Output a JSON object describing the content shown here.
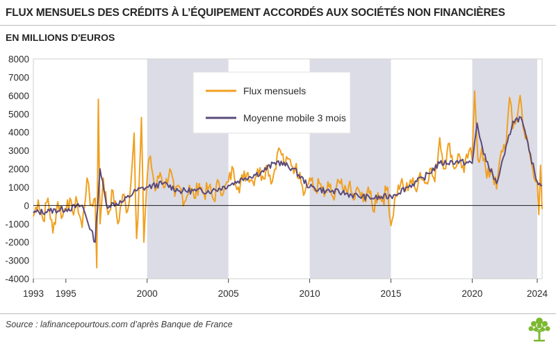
{
  "header": {
    "title": "FLUX MENSUELS DES CRÉDITS À L’ÉQUIPEMENT ACCORDÉS AUX SOCIÉTÉS NON FINANCIÈRES",
    "subtitle": "EN MILLIONS D'EUROS"
  },
  "footer": {
    "source": "Source : lafinancepourtous.com d’après Banque de France"
  },
  "colors": {
    "flux": "#f0a020",
    "moyenne": "#5a4a7a",
    "shade": "#dcdce6",
    "zero_line": "#1a1a1a",
    "logo": "#7db832"
  },
  "chart_data": {
    "type": "line",
    "title": "FLUX MENSUELS DES CRÉDITS À L’ÉQUIPEMENT ACCORDÉS AUX SOCIÉTÉS NON FINANCIÈRES",
    "ylabel": "EN MILLIONS D'EUROS",
    "ylim": [
      -4000,
      8000
    ],
    "xlim": [
      1993,
      2024.3
    ],
    "y_ticks": [
      8000,
      7000,
      6000,
      5000,
      4000,
      3000,
      2000,
      1000,
      0,
      -1000,
      -2000,
      -3000,
      -4000
    ],
    "x_ticks": [
      1993,
      1995,
      2000,
      2005,
      2010,
      2015,
      2020,
      2024
    ],
    "shaded_periods": [
      [
        2000,
        2005
      ],
      [
        2010,
        2015
      ],
      [
        2020,
        2024
      ]
    ],
    "legend": {
      "placement": "top-center"
    },
    "series": [
      {
        "name": "Flux mensuels",
        "anchors": [
          [
            1993.0,
            -600
          ],
          [
            1993.3,
            300
          ],
          [
            1993.6,
            -800
          ],
          [
            1993.9,
            400
          ],
          [
            1994.2,
            -1500
          ],
          [
            1994.5,
            200
          ],
          [
            1994.8,
            -600
          ],
          [
            1995.1,
            300
          ],
          [
            1995.4,
            -300
          ],
          [
            1995.7,
            200
          ],
          [
            1996.0,
            -1200
          ],
          [
            1996.3,
            1500
          ],
          [
            1996.5,
            0
          ],
          [
            1996.8,
            400
          ],
          [
            1996.9,
            -3400
          ],
          [
            1997.0,
            5800
          ],
          [
            1997.1,
            -1000
          ],
          [
            1997.3,
            1500
          ],
          [
            1997.6,
            -500
          ],
          [
            1997.9,
            800
          ],
          [
            1998.2,
            -1000
          ],
          [
            1998.5,
            600
          ],
          [
            1998.8,
            -300
          ],
          [
            1999.0,
            1200
          ],
          [
            1999.2,
            3950
          ],
          [
            1999.35,
            -1800
          ],
          [
            1999.5,
            1000
          ],
          [
            1999.65,
            4800
          ],
          [
            1999.8,
            -2000
          ],
          [
            2000.0,
            1500
          ],
          [
            2000.2,
            2700
          ],
          [
            2000.5,
            800
          ],
          [
            2000.8,
            1800
          ],
          [
            2001.1,
            1000
          ],
          [
            2001.4,
            2000
          ],
          [
            2001.7,
            500
          ],
          [
            2002.0,
            1000
          ],
          [
            2002.3,
            200
          ],
          [
            2002.6,
            1100
          ],
          [
            2002.9,
            400
          ],
          [
            2003.2,
            1200
          ],
          [
            2003.5,
            600
          ],
          [
            2003.8,
            1000
          ],
          [
            2004.1,
            300
          ],
          [
            2004.4,
            1300
          ],
          [
            2004.7,
            700
          ],
          [
            2005.0,
            1300
          ],
          [
            2005.3,
            2000
          ],
          [
            2005.6,
            1000
          ],
          [
            2005.9,
            1500
          ],
          [
            2006.2,
            1800
          ],
          [
            2006.5,
            1300
          ],
          [
            2006.8,
            2000
          ],
          [
            2007.1,
            1600
          ],
          [
            2007.4,
            2200
          ],
          [
            2007.7,
            1300
          ],
          [
            2008.0,
            2800
          ],
          [
            2008.2,
            3000
          ],
          [
            2008.5,
            2200
          ],
          [
            2008.8,
            2500
          ],
          [
            2009.1,
            2000
          ],
          [
            2009.4,
            1800
          ],
          [
            2009.7,
            700
          ],
          [
            2010.0,
            1500
          ],
          [
            2010.3,
            800
          ],
          [
            2010.6,
            1200
          ],
          [
            2010.9,
            500
          ],
          [
            2011.2,
            1000
          ],
          [
            2011.5,
            300
          ],
          [
            2011.8,
            1300
          ],
          [
            2012.1,
            700
          ],
          [
            2012.4,
            1100
          ],
          [
            2012.7,
            300
          ],
          [
            2013.0,
            900
          ],
          [
            2013.3,
            200
          ],
          [
            2013.6,
            1000
          ],
          [
            2013.9,
            -300
          ],
          [
            2014.2,
            700
          ],
          [
            2014.5,
            300
          ],
          [
            2014.8,
            1000
          ],
          [
            2015.0,
            -1100
          ],
          [
            2015.3,
            600
          ],
          [
            2015.6,
            1200
          ],
          [
            2015.9,
            800
          ],
          [
            2016.2,
            1400
          ],
          [
            2016.5,
            900
          ],
          [
            2016.8,
            1800
          ],
          [
            2017.1,
            1200
          ],
          [
            2017.4,
            2000
          ],
          [
            2017.7,
            1300
          ],
          [
            2018.0,
            3700
          ],
          [
            2018.3,
            2000
          ],
          [
            2018.6,
            3400
          ],
          [
            2018.9,
            2000
          ],
          [
            2019.2,
            2800
          ],
          [
            2019.5,
            1800
          ],
          [
            2019.8,
            3000
          ],
          [
            2020.0,
            2500
          ],
          [
            2020.15,
            6250
          ],
          [
            2020.35,
            2500
          ],
          [
            2020.6,
            3200
          ],
          [
            2020.9,
            1500
          ],
          [
            2021.2,
            2000
          ],
          [
            2021.5,
            900
          ],
          [
            2021.8,
            3000
          ],
          [
            2022.1,
            3500
          ],
          [
            2022.3,
            5900
          ],
          [
            2022.5,
            4200
          ],
          [
            2022.8,
            5000
          ],
          [
            2022.95,
            6000
          ],
          [
            2023.2,
            4000
          ],
          [
            2023.5,
            3000
          ],
          [
            2023.8,
            1500
          ],
          [
            2024.0,
            1300
          ],
          [
            2024.1,
            -500
          ],
          [
            2024.2,
            2200
          ],
          [
            2024.3,
            -200
          ]
        ]
      },
      {
        "name": "Moyenne mobile 3 mois",
        "anchors": [
          [
            1993.0,
            -400
          ],
          [
            1994.0,
            -300
          ],
          [
            1995.0,
            -200
          ],
          [
            1996.0,
            0
          ],
          [
            1996.8,
            -2000
          ],
          [
            1997.1,
            2000
          ],
          [
            1997.5,
            0
          ],
          [
            1998.5,
            200
          ],
          [
            1999.3,
            800
          ],
          [
            2000.0,
            1000
          ],
          [
            2001.0,
            1200
          ],
          [
            2002.0,
            800
          ],
          [
            2003.0,
            800
          ],
          [
            2004.0,
            800
          ],
          [
            2005.0,
            1100
          ],
          [
            2006.0,
            1500
          ],
          [
            2007.0,
            1800
          ],
          [
            2008.0,
            2400
          ],
          [
            2009.0,
            2000
          ],
          [
            2010.0,
            1000
          ],
          [
            2011.0,
            800
          ],
          [
            2012.0,
            700
          ],
          [
            2013.0,
            500
          ],
          [
            2014.0,
            400
          ],
          [
            2015.0,
            500
          ],
          [
            2016.0,
            1000
          ],
          [
            2017.0,
            1500
          ],
          [
            2018.0,
            2300
          ],
          [
            2019.0,
            2400
          ],
          [
            2020.0,
            2300
          ],
          [
            2020.3,
            4500
          ],
          [
            2020.7,
            2800
          ],
          [
            2021.5,
            1200
          ],
          [
            2022.0,
            2800
          ],
          [
            2022.5,
            4600
          ],
          [
            2023.0,
            4800
          ],
          [
            2023.5,
            3000
          ],
          [
            2024.0,
            1300
          ],
          [
            2024.3,
            1100
          ]
        ]
      }
    ]
  }
}
